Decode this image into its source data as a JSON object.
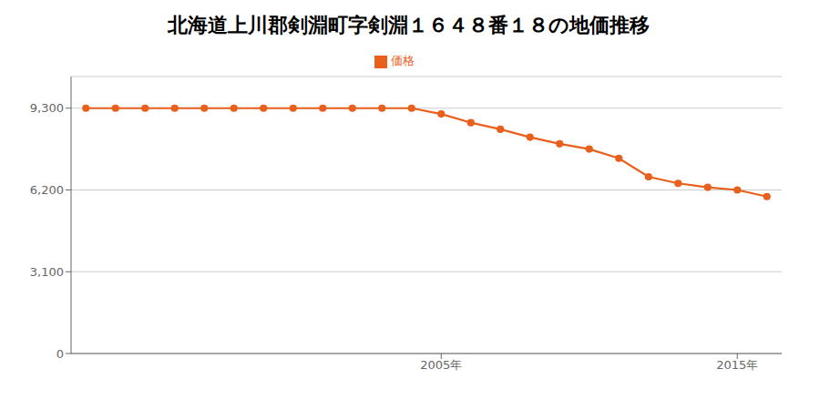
{
  "chart_data": {
    "type": "line",
    "title": "北海道上川郡剣淵町字剣淵１６４８番１８の地価推移",
    "x": [
      1993,
      1994,
      1995,
      1996,
      1997,
      1998,
      1999,
      2000,
      2001,
      2002,
      2003,
      2004,
      2005,
      2006,
      2007,
      2008,
      2009,
      2010,
      2011,
      2012,
      2013,
      2014,
      2015,
      2016
    ],
    "series": [
      {
        "name": "価格",
        "color": "#e8601c",
        "marker": "circle",
        "values": [
          9300,
          9300,
          9300,
          9300,
          9300,
          9300,
          9300,
          9300,
          9300,
          9300,
          9300,
          9300,
          9080,
          8750,
          8500,
          8200,
          7950,
          7750,
          7400,
          6700,
          6450,
          6300,
          6200,
          5950
        ]
      }
    ],
    "xlim": [
      1992.5,
      2016.5
    ],
    "xticks": [
      {
        "value": 2005,
        "label": "2005年"
      },
      {
        "value": 2015,
        "label": "2015年"
      }
    ],
    "ylim": [
      0,
      10500
    ],
    "yticks": [
      0,
      {
        "value": 3100,
        "label": "3,100"
      },
      {
        "value": 6200,
        "label": "6,200"
      },
      {
        "value": 9300,
        "label": "9,300"
      }
    ],
    "grid": "y",
    "legend": "top"
  }
}
